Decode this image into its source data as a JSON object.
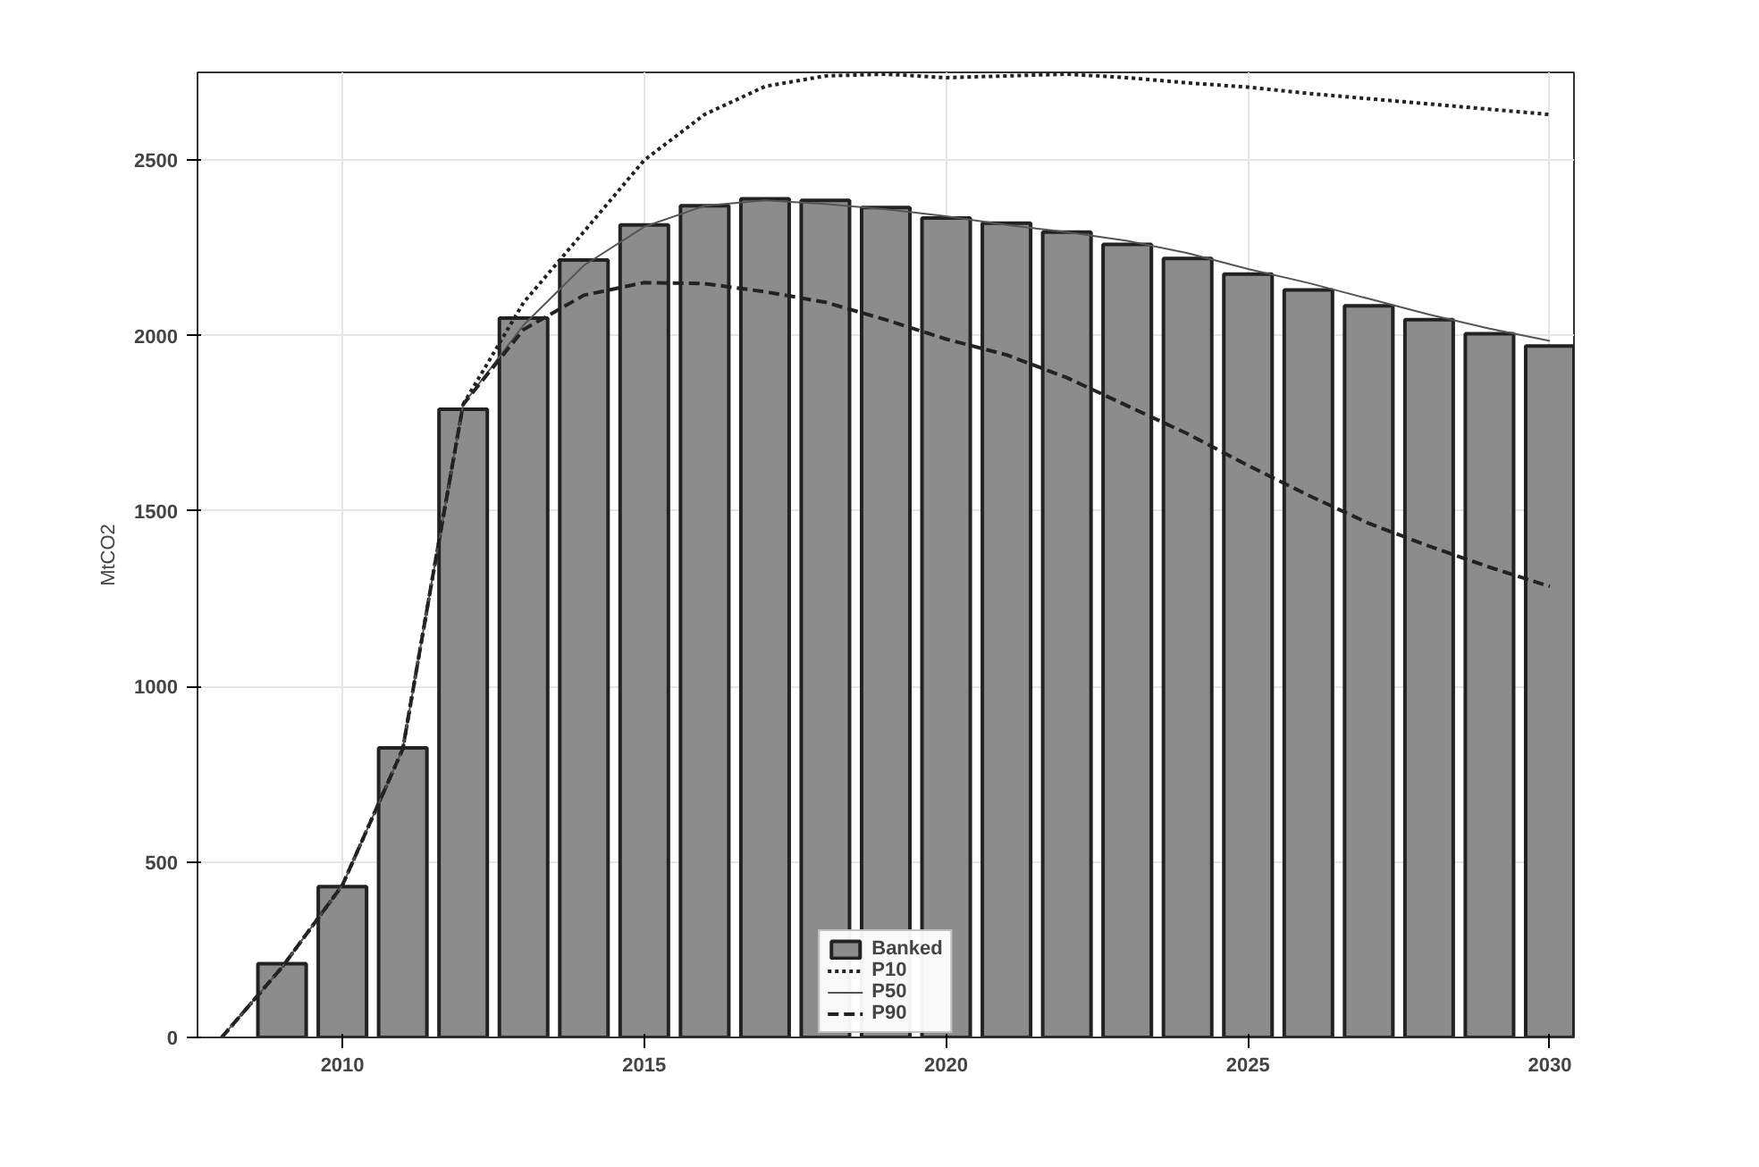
{
  "chart_data": {
    "type": "bar",
    "ylabel": "MtCO2",
    "xlim": [
      2007.6,
      2030.4
    ],
    "ylim": [
      0,
      2750
    ],
    "xticks": [
      2010,
      2015,
      2020,
      2025,
      2030
    ],
    "yticks": [
      0,
      500,
      1000,
      1500,
      2000,
      2500
    ],
    "grid": true,
    "legend": "bottom",
    "series": [
      {
        "name": "Banked",
        "color": "#8c8c8c",
        "x": [
          2009,
          2010,
          2011,
          2012,
          2013,
          2014,
          2015,
          2016,
          2017,
          2018,
          2019,
          2020,
          2021,
          2022,
          2023,
          2024,
          2025,
          2026,
          2027,
          2028,
          2029,
          2030
        ],
        "values": [
          210,
          430,
          825,
          1790,
          2050,
          2215,
          2315,
          2370,
          2390,
          2385,
          2365,
          2335,
          2320,
          2295,
          2260,
          2220,
          2175,
          2130,
          2085,
          2045,
          2005,
          1970
        ]
      },
      {
        "name": "P10",
        "type": "line",
        "color": "#222222",
        "line_style": "dotted",
        "x": [
          2008,
          2009,
          2010,
          2011,
          2011.5,
          2012,
          2013,
          2014,
          2015,
          2016,
          2017,
          2018,
          2019,
          2020,
          2021,
          2022,
          2023,
          2024,
          2025,
          2026,
          2027,
          2028,
          2029,
          2030
        ],
        "values": [
          0,
          200,
          434,
          822,
          1318,
          1804,
          2094,
          2296,
          2500,
          2630,
          2710,
          2740,
          2745,
          2735,
          2740,
          2745,
          2735,
          2720,
          2708,
          2690,
          2675,
          2660,
          2645,
          2630
        ]
      },
      {
        "name": "P50",
        "type": "line",
        "color": "#555555",
        "line_style": "solid",
        "x": [
          2008,
          2009,
          2010,
          2011,
          2011.5,
          2012,
          2013,
          2014,
          2015,
          2016,
          2017,
          2018,
          2019,
          2020,
          2021,
          2022,
          2023,
          2024,
          2025,
          2026,
          2027,
          2028,
          2029,
          2030
        ],
        "values": [
          0,
          200,
          434,
          822,
          1318,
          1804,
          2030,
          2200,
          2310,
          2370,
          2385,
          2375,
          2360,
          2340,
          2315,
          2295,
          2270,
          2235,
          2190,
          2150,
          2105,
          2060,
          2020,
          1985
        ]
      },
      {
        "name": "P90",
        "type": "line",
        "color": "#222222",
        "line_style": "dashed",
        "x": [
          2008,
          2009,
          2010,
          2011,
          2011.5,
          2012,
          2013,
          2014,
          2015,
          2016,
          2017,
          2018,
          2019,
          2020,
          2021,
          2022,
          2023,
          2024,
          2025,
          2026,
          2027,
          2028,
          2029,
          2030
        ],
        "values": [
          0,
          200,
          434,
          822,
          1318,
          1804,
          2017,
          2115,
          2151,
          2148,
          2125,
          2095,
          2045,
          1990,
          1945,
          1880,
          1800,
          1720,
          1630,
          1545,
          1465,
          1400,
          1340,
          1285
        ]
      }
    ]
  }
}
